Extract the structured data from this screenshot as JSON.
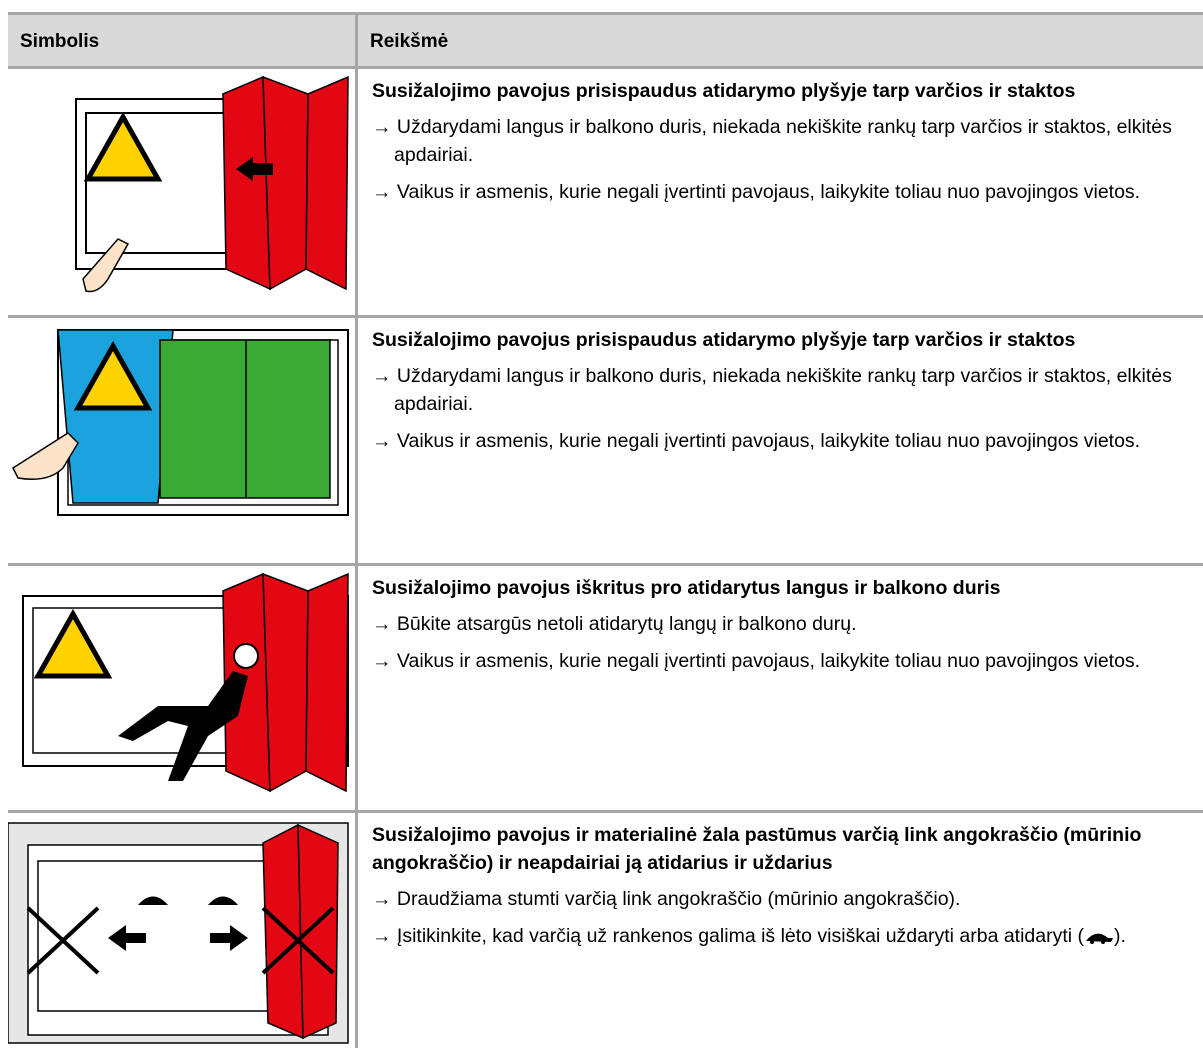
{
  "header": {
    "columns": [
      "Simbolis",
      "Reikšmė"
    ]
  },
  "rows": [
    {
      "title": "Susižalojimo pavojus prisispaudus atidarymo plyšyje tarp varčios ir staktos",
      "items": [
        "→ Uždarydami langus ir balkono duris, niekada nekiškite rankų tarp varčios ir staktos, elkitės apdairiai.",
        "→ Vaikus ir asmenis, kurie negali įvertinti pavojaus, laikykite toliau nuo pavojingos vietos."
      ]
    },
    {
      "title": "Susižalojimo pavojus prisispaudus atidarymo plyšyje tarp varčios ir staktos",
      "items": [
        "→ Uždarydami langus ir balkono duris, niekada nekiškite rankų tarp varčios ir staktos, elkitės apdairiai.",
        "→ Vaikus ir asmenis, kurie negali įvertinti pavojaus, laikykite toliau nuo pavojingos vietos."
      ]
    },
    {
      "title": "Susižalojimo pavojus iškritus pro atidarytus langus ir balkono duris",
      "items": [
        "→ Būkite atsargūs netoli atidarytų langų ir balkono durų.",
        "→ Vaikus ir asmenis, kurie negali įvertinti pavojaus, laikykite toliau nuo pavojingos vietos."
      ]
    },
    {
      "title": "Susižalojimo pavojus ir materialinė žala pastūmus varčią link angokraščio (mūrinio angokraščio) ir neapdairiai ją atidarius ir uždarius",
      "items": [
        "→ Draudžiama stumti varčią link angokraščio (mūrinio angokraščio).",
        {
          "text": "→ Įsitikinkite, kad varčią už rankenos galima iš lėto visiškai uždaryti arba atidaryti (",
          "end": ")."
        }
      ]
    }
  ]
}
